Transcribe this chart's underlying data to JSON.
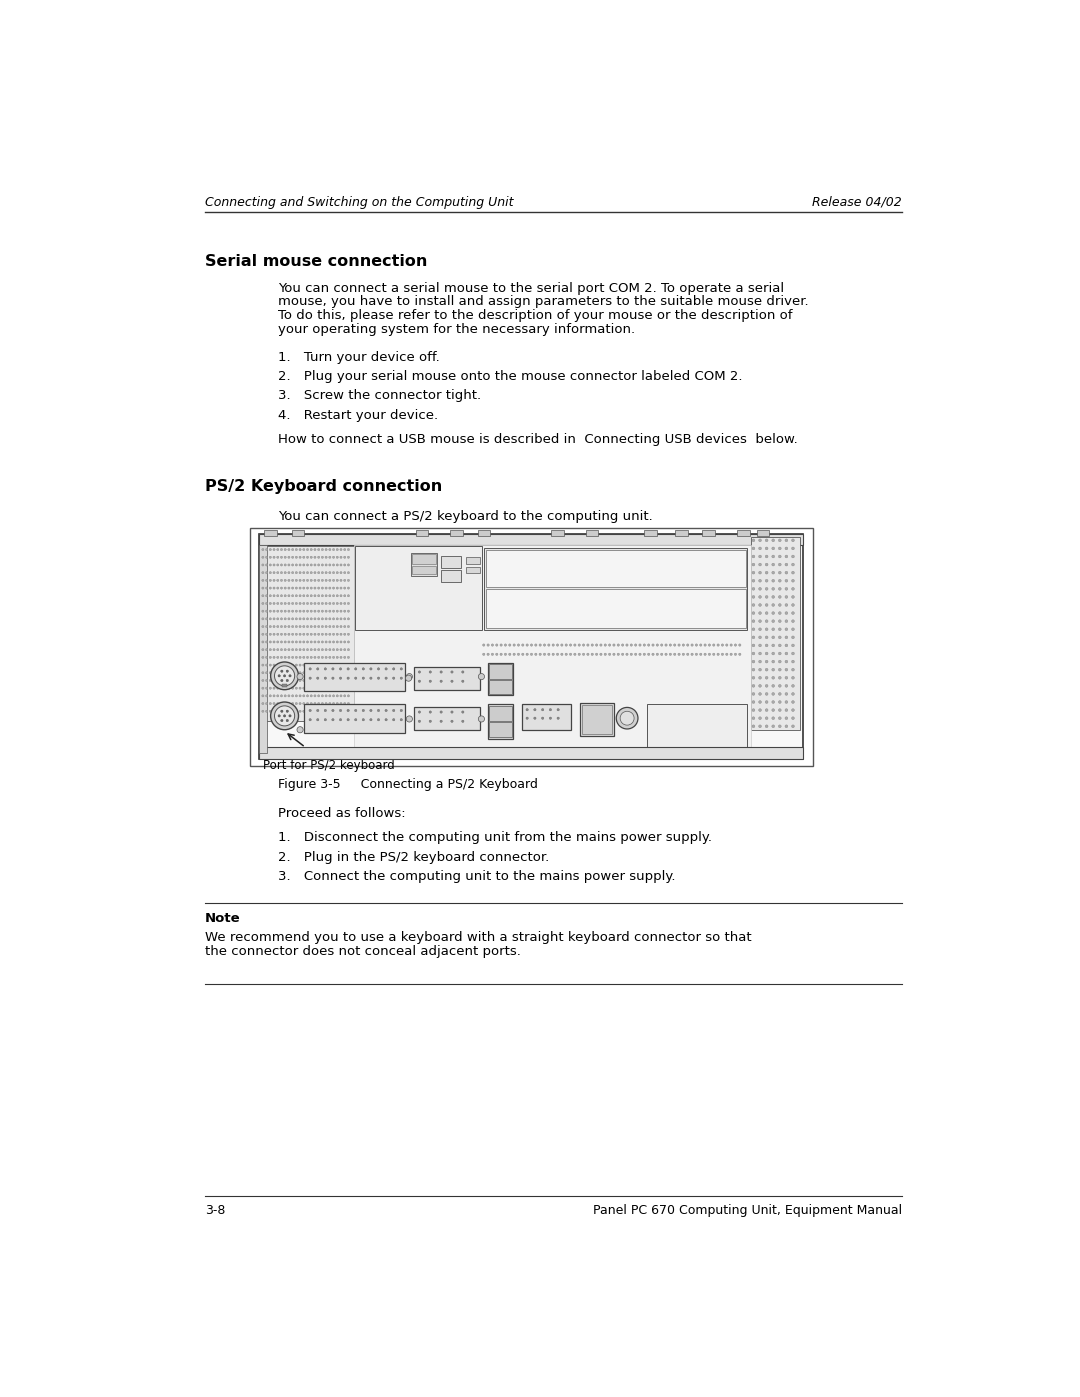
{
  "bg_color": "#ffffff",
  "header_left": "Connecting and Switching on the Computing Unit",
  "header_right": "Release 04/02",
  "footer_left": "3-8",
  "footer_right": "Panel PC 670 Computing Unit, Equipment Manual",
  "section1_title": "Serial mouse connection",
  "section1_body_lines": [
    "You can connect a serial mouse to the serial port COM 2. To operate a serial",
    "mouse, you have to install and assign parameters to the suitable mouse driver.",
    "To do this, please refer to the description of your mouse or the description of",
    "your operating system for the necessary information."
  ],
  "section1_steps": [
    "Turn your device off.",
    "Plug your serial mouse onto the mouse connector labeled COM 2.",
    "Screw the connector tight.",
    "Restart your device."
  ],
  "section1_note": "How to connect a USB mouse is described in  Connecting USB devices  below.",
  "section2_title": "PS/2 Keyboard connection",
  "section2_intro": "You can connect a PS/2 keyboard to the computing unit.",
  "figure_caption": "Figure 3-5     Connecting a PS/2 Keyboard",
  "figure_label": "Port for PS/2 keyboard",
  "proceed_text": "Proceed as follows:",
  "section2_steps": [
    "Disconnect the computing unit from the mains power supply.",
    "Plug in the PS/2 keyboard connector.",
    "Connect the computing unit to the mains power supply."
  ],
  "note_title": "Note",
  "note_body_lines": [
    "We recommend you to use a keyboard with a straight keyboard connector so that",
    "the connector does not conceal adjacent ports."
  ],
  "text_color": "#000000",
  "font_size_body": 9.5,
  "font_size_header": 9.0,
  "font_size_section": 11.5
}
